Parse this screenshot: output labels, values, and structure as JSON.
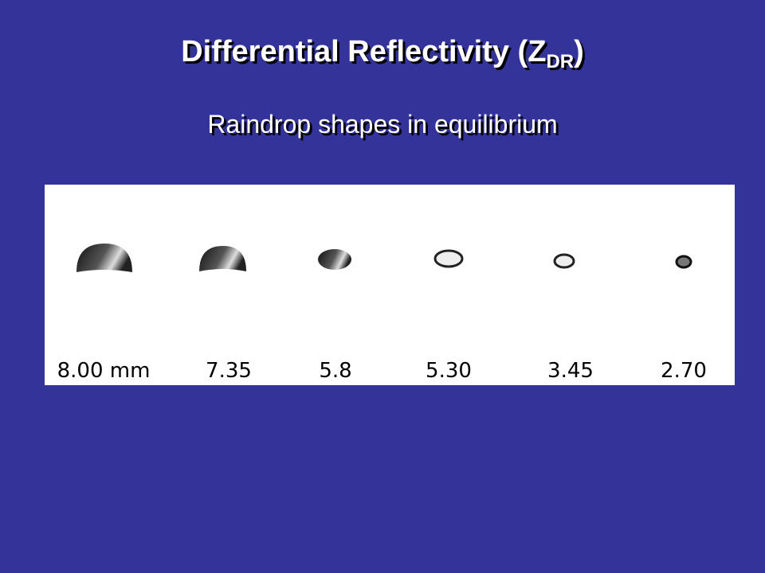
{
  "title": {
    "text": "Differential Reflectivity (Z",
    "subscript": "DR",
    "suffix": ")"
  },
  "subtitle": "Raindrop shapes in equilibrium",
  "figure": {
    "labels": [
      "8.00 mm",
      "7.35",
      "5.8",
      "5.30",
      "3.45",
      "2.70"
    ]
  }
}
